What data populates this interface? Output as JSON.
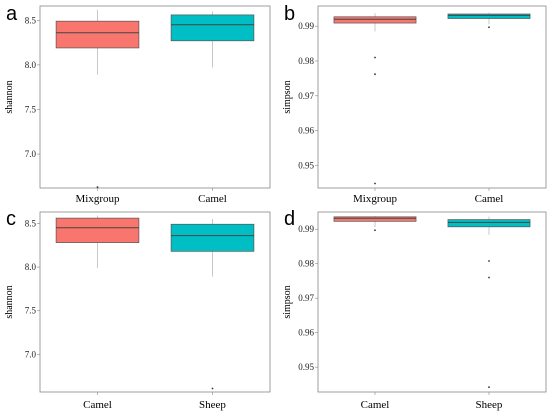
{
  "chart_data": [
    {
      "type": "box",
      "panel": "a",
      "ylabel": "shannon",
      "ylim": [
        6.62,
        8.66
      ],
      "yticks": [
        7.0,
        7.5,
        8.0,
        8.5
      ],
      "yticklabels": [
        "7.0",
        "7.5",
        "8.0",
        "8.5"
      ],
      "categories": [
        "Mixgroup",
        "Camel"
      ],
      "boxes": [
        {
          "name": "Mixgroup",
          "color": "#F8766D",
          "q1": 8.19,
          "median": 8.36,
          "q3": 8.49,
          "whisker_low": 7.89,
          "whisker_high": 8.62,
          "outliers": [
            6.63
          ]
        },
        {
          "name": "Camel",
          "color": "#00BFC4",
          "q1": 8.27,
          "median": 8.45,
          "q3": 8.56,
          "whisker_low": 7.97,
          "whisker_high": 8.6,
          "outliers": []
        }
      ]
    },
    {
      "type": "box",
      "panel": "b",
      "ylabel": "simpson",
      "ylim": [
        0.9435,
        0.9958
      ],
      "yticks": [
        0.95,
        0.96,
        0.97,
        0.98,
        0.99
      ],
      "yticklabels": [
        "0.95",
        "0.96",
        "0.97",
        "0.98",
        "0.99"
      ],
      "categories": [
        "Mixgroup",
        "Camel"
      ],
      "boxes": [
        {
          "name": "Mixgroup",
          "color": "#F8766D",
          "q1": 0.9909,
          "median": 0.992,
          "q3": 0.9927,
          "whisker_low": 0.9885,
          "whisker_high": 0.9937,
          "outliers": [
            0.981,
            0.9762,
            0.9448
          ]
        },
        {
          "name": "Camel",
          "color": "#00BFC4",
          "q1": 0.9922,
          "median": 0.9931,
          "q3": 0.9935,
          "whisker_low": 0.9906,
          "whisker_high": 0.9939,
          "outliers": [
            0.9897
          ]
        }
      ]
    },
    {
      "type": "box",
      "panel": "c",
      "ylabel": "shannon",
      "ylim": [
        6.57,
        8.63
      ],
      "yticks": [
        7.0,
        7.5,
        8.0,
        8.5
      ],
      "yticklabels": [
        "7.0",
        "7.5",
        "8.0",
        "8.5"
      ],
      "categories": [
        "Camel",
        "Sheep"
      ],
      "boxes": [
        {
          "name": "Camel",
          "color": "#F8766D",
          "q1": 8.28,
          "median": 8.45,
          "q3": 8.56,
          "whisker_low": 7.99,
          "whisker_high": 8.59,
          "outliers": []
        },
        {
          "name": "Sheep",
          "color": "#00BFC4",
          "q1": 8.18,
          "median": 8.36,
          "q3": 8.49,
          "whisker_low": 7.89,
          "whisker_high": 8.55,
          "outliers": [
            6.61
          ]
        }
      ]
    },
    {
      "type": "box",
      "panel": "d",
      "ylabel": "simpson",
      "ylim": [
        0.9428,
        0.995
      ],
      "yticks": [
        0.95,
        0.96,
        0.97,
        0.98,
        0.99
      ],
      "yticklabels": [
        "0.95",
        "0.96",
        "0.97",
        "0.98",
        "0.99"
      ],
      "categories": [
        "Camel",
        "Sheep"
      ],
      "boxes": [
        {
          "name": "Camel",
          "color": "#F8766D",
          "q1": 0.9923,
          "median": 0.9932,
          "q3": 0.9936,
          "whisker_low": 0.9907,
          "whisker_high": 0.9938,
          "outliers": [
            0.9897
          ]
        },
        {
          "name": "Sheep",
          "color": "#00BFC4",
          "q1": 0.9907,
          "median": 0.992,
          "q3": 0.9928,
          "whisker_low": 0.9884,
          "whisker_high": 0.9937,
          "outliers": [
            0.9808,
            0.976,
            0.9442
          ]
        }
      ]
    }
  ]
}
